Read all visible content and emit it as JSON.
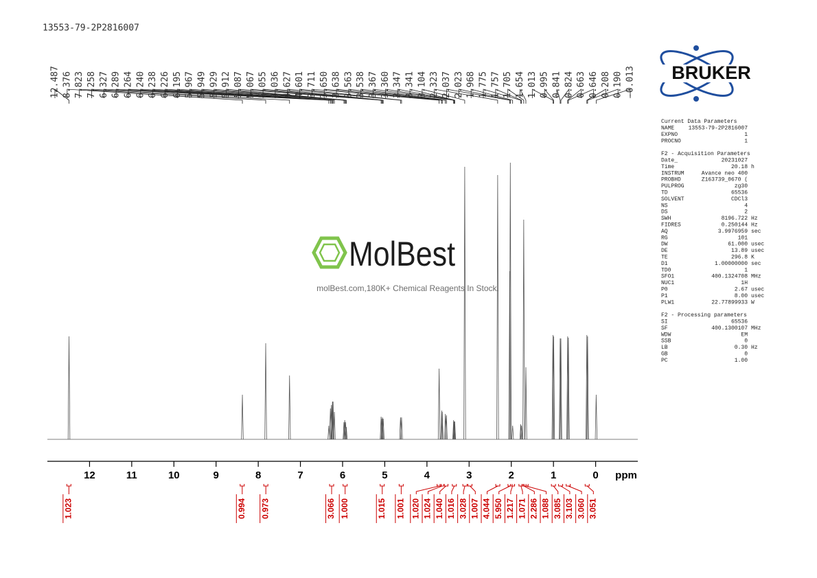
{
  "header": "13553-79-2P2816007",
  "logo": "BRUKER",
  "watermark": {
    "brand": "MolBest",
    "tagline": "molBest.com,180K+ Chemical Reagents In Stock."
  },
  "parameters": [
    {
      "title": "Current Data Parameters",
      "rows": [
        [
          "NAME",
          "13553-79-2P2816007"
        ],
        [
          "EXPNO",
          "1"
        ],
        [
          "PROCNO",
          "1"
        ]
      ]
    },
    {
      "title": "F2 - Acquisition Parameters",
      "rows": [
        [
          "Date_",
          "20231027"
        ],
        [
          "Time",
          "20.18",
          "h"
        ],
        [
          "INSTRUM",
          "Avance neo 400"
        ],
        [
          "PROBHD",
          "Z163739_0670 ("
        ],
        [
          "PULPROG",
          "zg30"
        ],
        [
          "TD",
          "65536"
        ],
        [
          "SOLVENT",
          "CDCl3"
        ],
        [
          "NS",
          "4"
        ],
        [
          "DS",
          "2"
        ],
        [
          "SWH",
          "8196.722",
          "Hz"
        ],
        [
          "FIDRES",
          "0.250144",
          "Hz"
        ],
        [
          "AQ",
          "3.9976959",
          "sec"
        ],
        [
          "RG",
          "101"
        ],
        [
          "DW",
          "61.000",
          "usec"
        ],
        [
          "DE",
          "13.89",
          "usec"
        ],
        [
          "TE",
          "296.8",
          "K"
        ],
        [
          "D1",
          "1.00000000",
          "sec"
        ],
        [
          "TD0",
          "1"
        ],
        [
          "SFO1",
          "400.1324708",
          "MHz"
        ],
        [
          "NUC1",
          "1H"
        ],
        [
          "P0",
          "2.67",
          "usec"
        ],
        [
          "P1",
          "8.00",
          "usec"
        ],
        [
          "PLW1",
          "22.77899933",
          "W"
        ]
      ]
    },
    {
      "title": "F2 - Processing parameters",
      "rows": [
        [
          "SI",
          "65536"
        ],
        [
          "SF",
          "400.1300107",
          "MHz"
        ],
        [
          "WDW",
          "EM"
        ],
        [
          "SSB",
          "0"
        ],
        [
          "LB",
          "0.30",
          "Hz"
        ],
        [
          "GB",
          "0"
        ],
        [
          "PC",
          "1.00"
        ]
      ]
    }
  ],
  "chart_data": {
    "type": "spectrum",
    "x_label": "ppm",
    "xlim": [
      13,
      -1
    ],
    "xticks": [
      12,
      11,
      10,
      9,
      8,
      7,
      6,
      5,
      4,
      3,
      2,
      1,
      0
    ],
    "ylim": [
      0,
      410
    ],
    "color": "#555555",
    "x": [
      12.487,
      8.376,
      7.823,
      7.258,
      6.327,
      6.289,
      6.264,
      6.24,
      6.238,
      6.226,
      6.195,
      5.967,
      5.949,
      5.929,
      5.912,
      5.087,
      5.067,
      5.055,
      5.036,
      4.627,
      4.601,
      3.711,
      3.65,
      3.638,
      3.563,
      3.538,
      3.367,
      3.36,
      3.347,
      3.341,
      3.104,
      2.323,
      2.037,
      2.023,
      1.968,
      1.775,
      1.757,
      1.705,
      1.654,
      1.013,
      0.995,
      0.841,
      0.824,
      0.663,
      0.646,
      0.208,
      0.19,
      -0.013
    ],
    "x_labels": [
      "12.487",
      "8.376",
      "7.823",
      "7.258",
      "6.327",
      "6.289",
      "6.264",
      "6.240",
      "6.238",
      "6.226",
      "6.195",
      "5.967",
      "5.949",
      "5.929",
      "5.912",
      "5.087",
      "5.067",
      "5.055",
      "5.036",
      "4.627",
      "4.601",
      "3.711",
      "3.650",
      "3.638",
      "3.563",
      "3.538",
      "3.367",
      "3.360",
      "3.347",
      "3.341",
      "3.104",
      "2.323",
      "2.037",
      "2.023",
      "1.968",
      "1.775",
      "1.757",
      "1.705",
      "1.654",
      "1.013",
      "0.995",
      "0.841",
      "0.824",
      "0.663",
      "0.646",
      "0.208",
      "0.190",
      "-0.013"
    ],
    "values": [
      150,
      65,
      140,
      93,
      20,
      45,
      50,
      55,
      55,
      55,
      40,
      25,
      28,
      25,
      18,
      33,
      30,
      32,
      30,
      32,
      32,
      103,
      42,
      40,
      37,
      35,
      28,
      26,
      26,
      26,
      397,
      385,
      245,
      403,
      20,
      22,
      20,
      320,
      105,
      152,
      150,
      147,
      147,
      150,
      148,
      152,
      150,
      65
    ],
    "integrals": {
      "color": "#cc0000",
      "x": [
        12.49,
        8.38,
        7.82,
        6.26,
        5.94,
        5.06,
        4.61,
        3.71,
        3.64,
        3.55,
        3.35,
        3.1,
        2.98,
        2.32,
        2.03,
        1.97,
        1.77,
        1.7,
        1.65,
        1.0,
        0.83,
        0.65,
        0.2
      ],
      "values": [
        1.023,
        0.994,
        0.973,
        3.066,
        1.0,
        1.015,
        1.001,
        1.02,
        1.024,
        1.04,
        1.016,
        3.028,
        1.007,
        4.044,
        5.95,
        1.217,
        1.071,
        2.286,
        1.088,
        3.085,
        3.103,
        3.06,
        3.051
      ],
      "value_labels": [
        "1.023",
        "0.994",
        "0.973",
        "3.066",
        "1.000",
        "1.015",
        "1.001",
        "1.020",
        "1.024",
        "1.040",
        "1.016",
        "3.028",
        "1.007",
        "4.044",
        "5.950",
        "1.217",
        "1.071",
        "2.286",
        "1.088",
        "3.085",
        "3.103",
        "3.060",
        "3.051"
      ]
    }
  }
}
